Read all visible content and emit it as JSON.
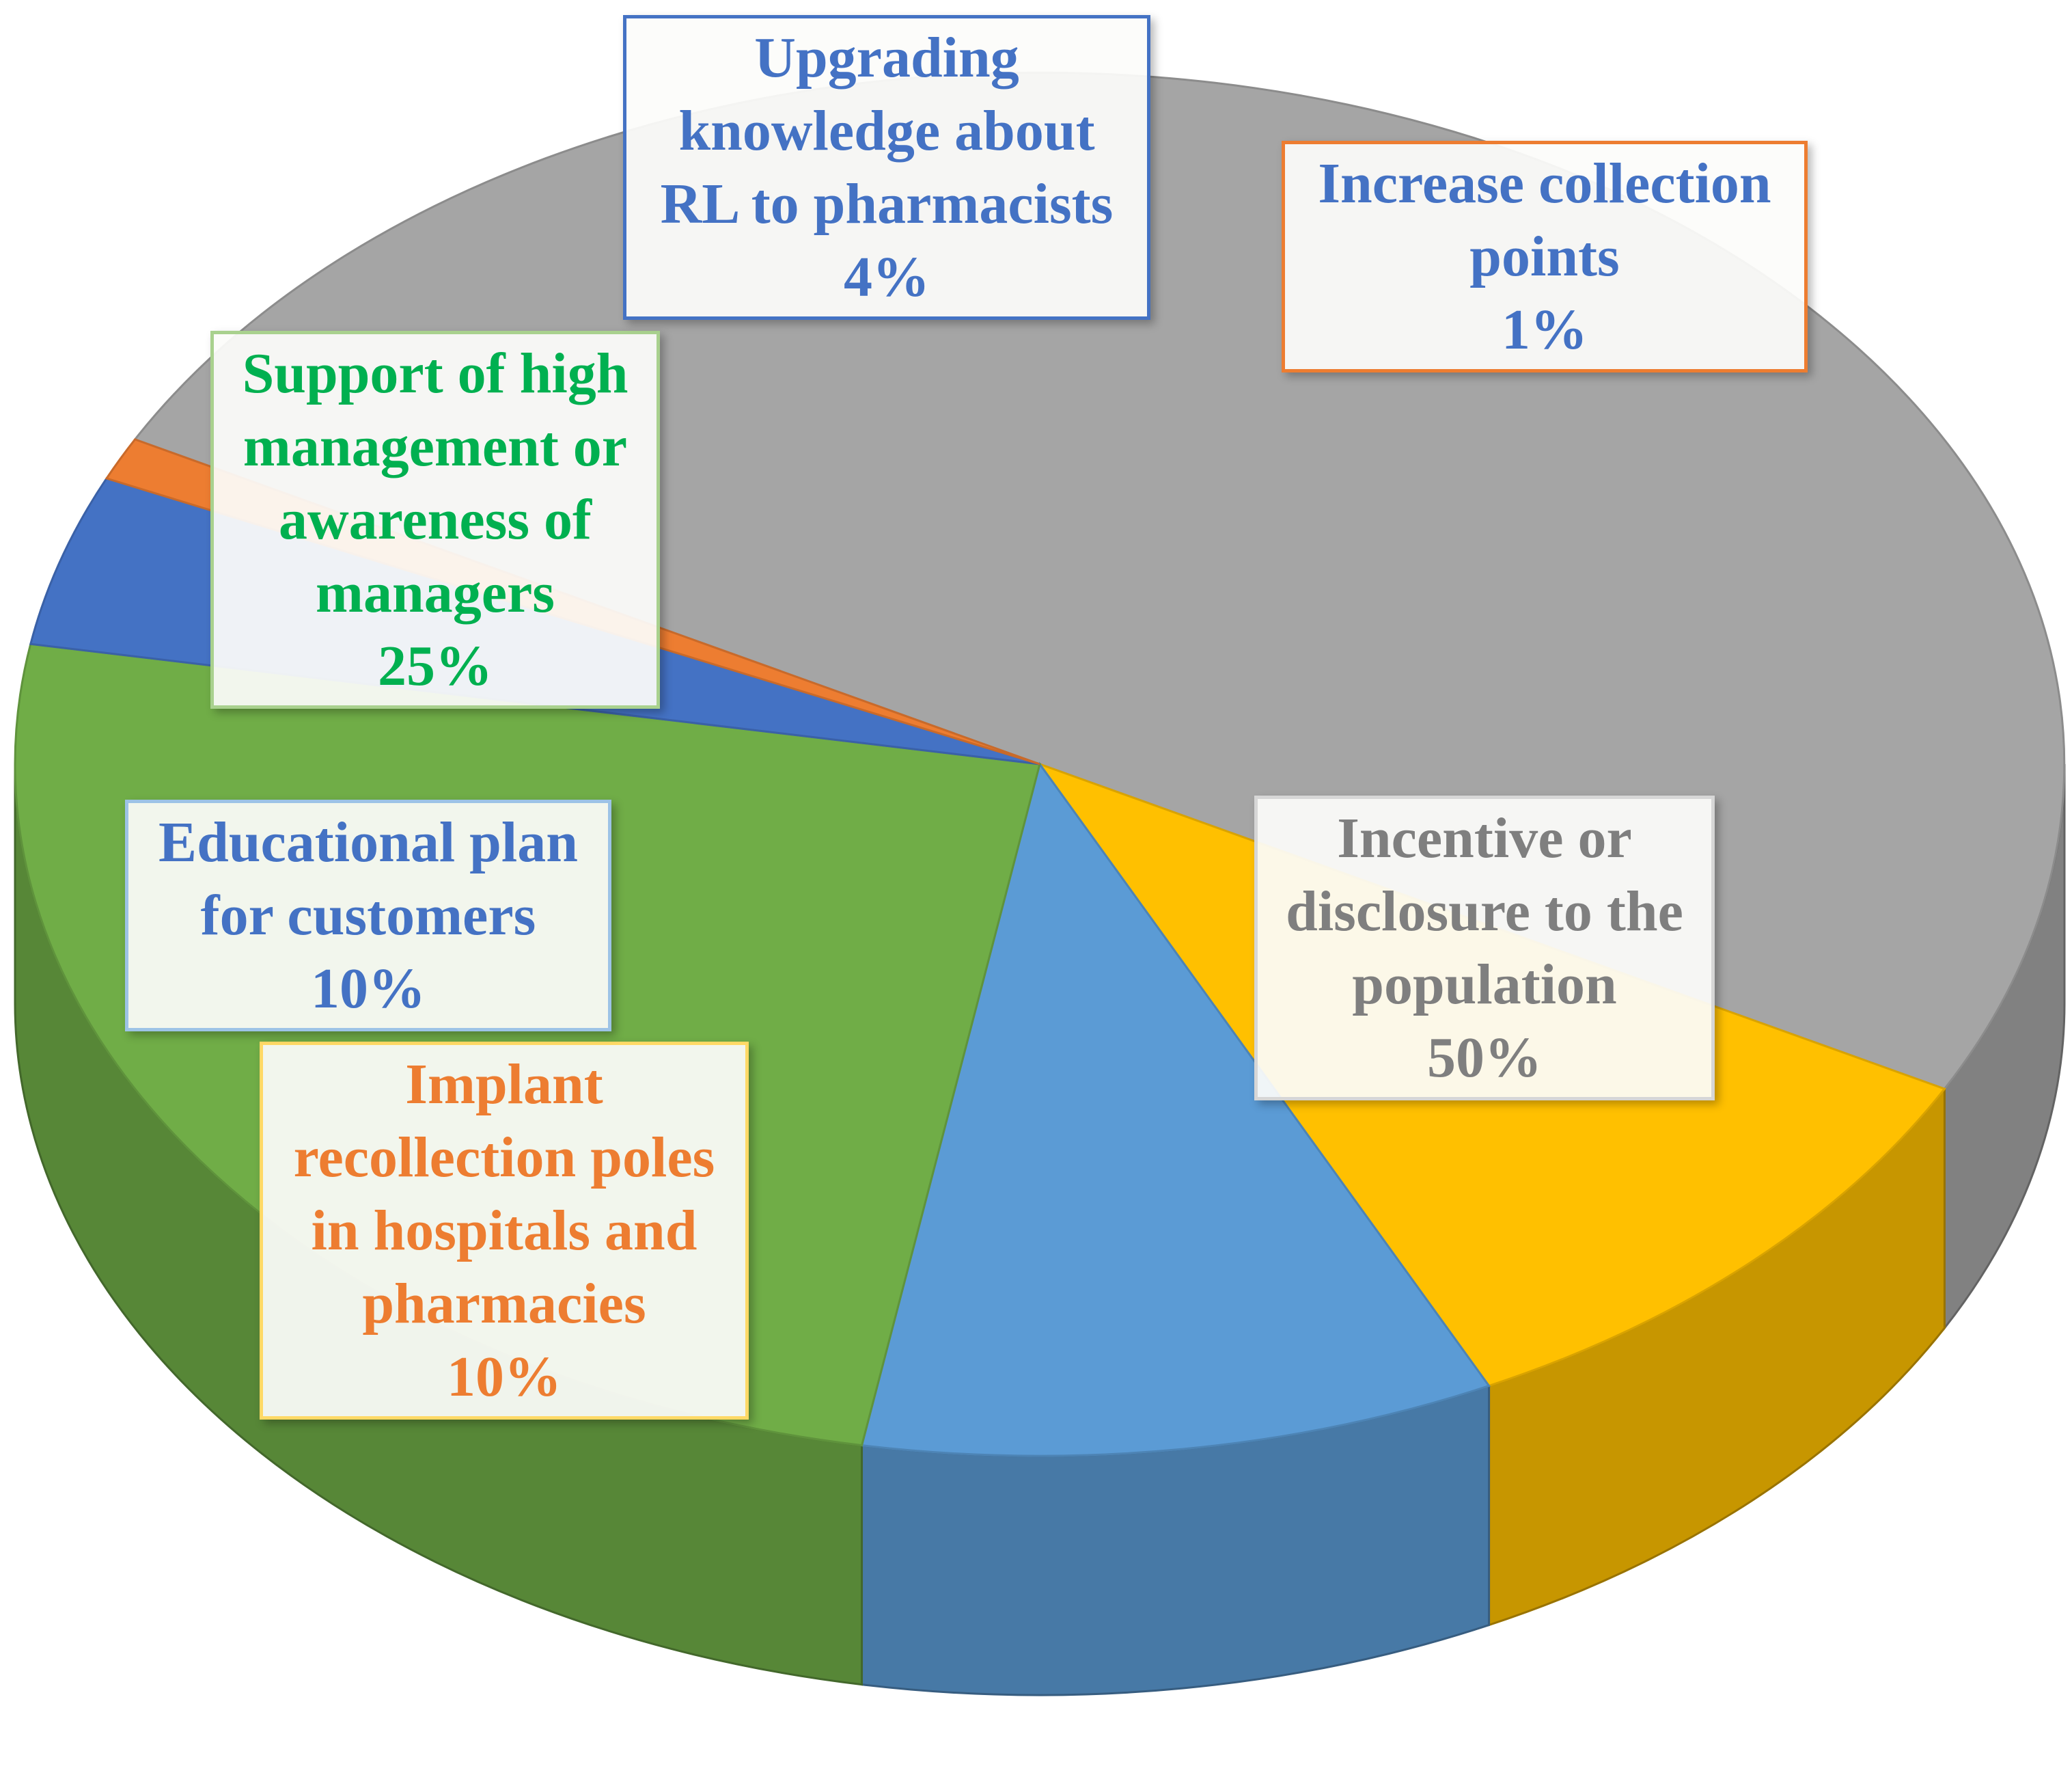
{
  "chart_data": {
    "type": "pie",
    "style": "3d",
    "slices": [
      {
        "label": "Incentive or disclosure to the population",
        "value": 50,
        "display": "50%",
        "color": "#a5a5a5",
        "text_color": "#7f7f7f"
      },
      {
        "label": "Implant recollection poles in hospitals and pharmacies",
        "value": 10,
        "display": "10%",
        "color": "#ffc000",
        "text_color": "#ed7d31"
      },
      {
        "label": "Educational plan for customers",
        "value": 10,
        "display": "10%",
        "color": "#5b9bd5",
        "text_color": "#4472c4"
      },
      {
        "label": "Support of high management or awareness of managers",
        "value": 25,
        "display": "25%",
        "color": "#70ad47",
        "text_color": "#00b050"
      },
      {
        "label": "Upgrading knowledge about RL to pharmacists",
        "value": 4,
        "display": "4%",
        "color": "#4472c4",
        "text_color": "#4472c4"
      },
      {
        "label": "Increase collection points",
        "value": 1,
        "display": "1%",
        "color": "#ed7d31",
        "text_color": "#4472c4"
      }
    ]
  },
  "labels": {
    "incentive": {
      "lines": [
        "Incentive or",
        "disclosure to the",
        "population"
      ],
      "pct": "50%"
    },
    "implant": {
      "lines": [
        "Implant",
        "recollection poles",
        "in hospitals and",
        "pharmacies"
      ],
      "pct": "10%"
    },
    "educational": {
      "lines": [
        "Educational plan",
        "for customers"
      ],
      "pct": "10%"
    },
    "support": {
      "lines": [
        "Support of high",
        "management or",
        "awareness of",
        "managers"
      ],
      "pct": "25%"
    },
    "upgrading": {
      "lines": [
        "Upgrading",
        "knowledge about",
        "RL to pharmacists"
      ],
      "pct": "4%"
    },
    "increase": {
      "lines": [
        "Increase collection",
        "points"
      ],
      "pct": "1%"
    }
  },
  "colors": {
    "gray": "#a5a5a5",
    "yellow": "#ffc000",
    "light_blue": "#5b9bd5",
    "green": "#70ad47",
    "blue": "#4472c4",
    "orange": "#ed7d31"
  }
}
